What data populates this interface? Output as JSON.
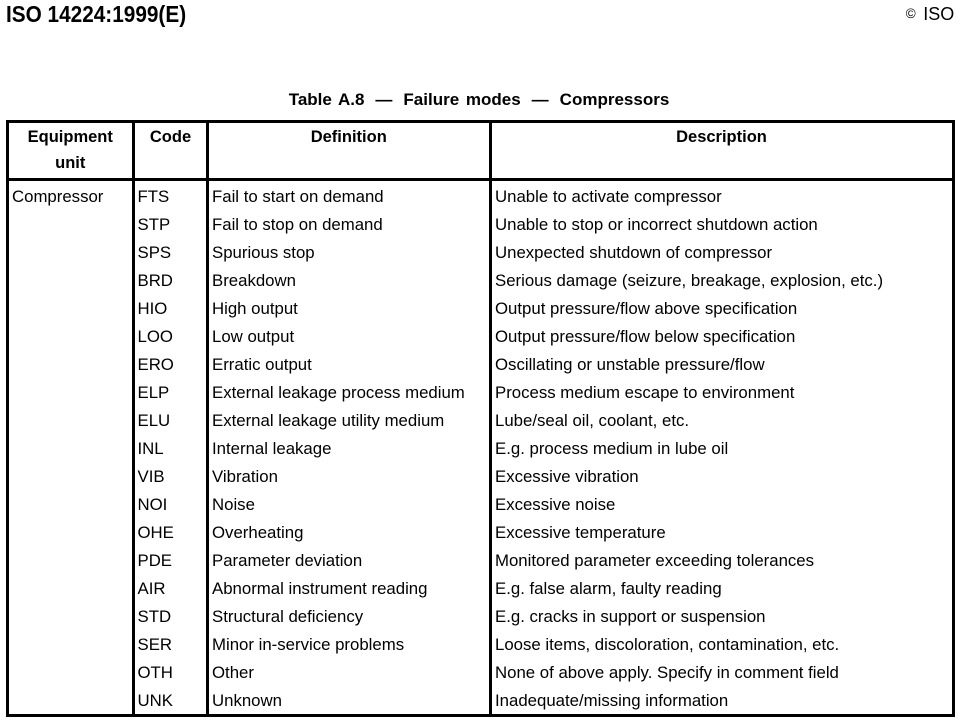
{
  "page": {
    "doc_ref": "ISO 14224:1999(E)",
    "copyright_symbol": "©",
    "copyright_owner": "ISO",
    "table_title": "Table A.8 — Failure modes — Compressors"
  },
  "table": {
    "headers": {
      "equipment_unit": "Equipment\nunit",
      "code": "Code",
      "definition": "Definition",
      "description": "Description"
    },
    "equipment_unit": "Compressor",
    "rows": [
      {
        "code": "FTS",
        "definition": "Fail to start on demand",
        "description": "Unable to activate compressor"
      },
      {
        "code": "STP",
        "definition": "Fail to stop on demand",
        "description": "Unable to stop or incorrect shutdown action"
      },
      {
        "code": "SPS",
        "definition": "Spurious stop",
        "description": "Unexpected shutdown of compressor"
      },
      {
        "code": "BRD",
        "definition": "Breakdown",
        "description": "Serious damage (seizure, breakage, explosion, etc.)"
      },
      {
        "code": "HIO",
        "definition": "High output",
        "description": "Output pressure/flow above specification"
      },
      {
        "code": "LOO",
        "definition": "Low output",
        "description": "Output pressure/flow below specification"
      },
      {
        "code": "ERO",
        "definition": "Erratic output",
        "description": "Oscillating or unstable pressure/flow"
      },
      {
        "code": "ELP",
        "definition": "External leakage process medium",
        "description": "Process medium escape to environment"
      },
      {
        "code": "ELU",
        "definition": "External leakage utility medium",
        "description": "Lube/seal oil, coolant, etc."
      },
      {
        "code": "INL",
        "definition": "Internal leakage",
        "description": "E.g. process medium in lube oil"
      },
      {
        "code": "VIB",
        "definition": "Vibration",
        "description": "Excessive vibration"
      },
      {
        "code": "NOI",
        "definition": "Noise",
        "description": "Excessive noise"
      },
      {
        "code": "OHE",
        "definition": "Overheating",
        "description": "Excessive temperature"
      },
      {
        "code": "PDE",
        "definition": "Parameter deviation",
        "description": "Monitored parameter exceeding tolerances"
      },
      {
        "code": "AIR",
        "definition": "Abnormal instrument reading",
        "description": "E.g. false alarm, faulty reading"
      },
      {
        "code": "STD",
        "definition": "Structural deficiency",
        "description": "E.g. cracks in support or suspension"
      },
      {
        "code": "SER",
        "definition": "Minor in-service problems",
        "description": "Loose items, discoloration, contamination, etc."
      },
      {
        "code": "OTH",
        "definition": "Other",
        "description": "None of above apply. Specify in comment field"
      },
      {
        "code": "UNK",
        "definition": "Unknown",
        "description": "Inadequate/missing information"
      }
    ]
  },
  "colors": {
    "text": "#000000",
    "border": "#000000",
    "background": "#ffffff"
  }
}
